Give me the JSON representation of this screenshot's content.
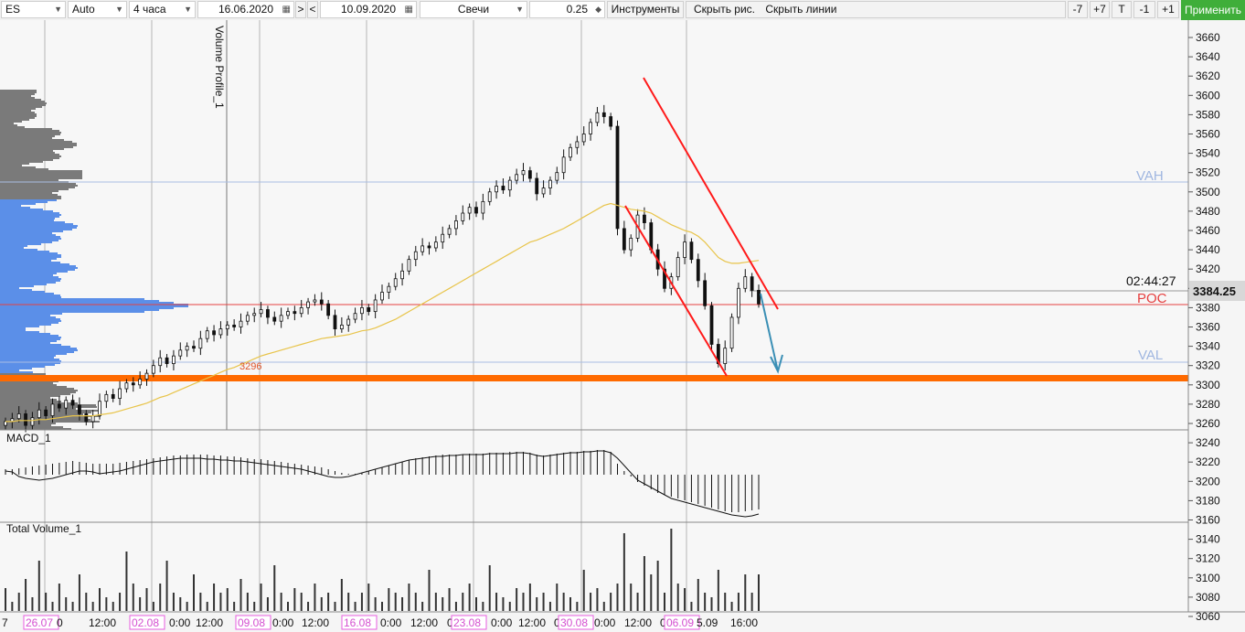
{
  "toolbar": {
    "symbol": "ES",
    "scale_mode": "Auto",
    "timeframe": "4 часа",
    "date_from": "16.06.2020",
    "prev_btn": ">",
    "next_btn": "<",
    "date_to": "10.09.2020",
    "chart_type": "Свечи",
    "tick_size": "0.25",
    "instruments": "Инструменты",
    "hide_drawings": "Скрыть рис.",
    "hide_lines": "Скрыть линии",
    "btn_minus7": "-7",
    "btn_plus7": "+7",
    "btn_t": "T",
    "btn_minus1": "-1",
    "btn_plus1": "+1",
    "apply": "Применить"
  },
  "colors": {
    "up_down_candle": "#111111",
    "profile_value_area": "#5b8fe8",
    "profile_outside": "#7a7a7a",
    "ma_line": "#e8c44a",
    "channel": "#ff1a1a",
    "arrow": "#3a8fb5",
    "support": "#ff6a00",
    "poc_line": "#e64040",
    "va_lines": "#9fb6e0"
  },
  "annotations": {
    "profile_label": "Volume Profile_1",
    "macd_label": "MACD_1",
    "volume_label": "Total Volume_1",
    "vah": "VAH",
    "poc": "POC",
    "val": "VAL",
    "level_label": "3296",
    "timer": "02:44:27",
    "last_price": "3384.25"
  },
  "chart_data": {
    "type": "candlestick",
    "price_axis": [
      "3660",
      "3640",
      "3620",
      "3600",
      "3580",
      "3560",
      "3540",
      "3520",
      "3500",
      "3480",
      "3460",
      "3440",
      "3420",
      "3400",
      "3380",
      "3360",
      "3340",
      "3320",
      "3300",
      "3280",
      "3260",
      "3240",
      "3220",
      "3200",
      "3180",
      "3160",
      "3140",
      "3120",
      "3100",
      "3080",
      "3060"
    ],
    "price_range": [
      3240,
      3660
    ],
    "levels": {
      "vah": 3493,
      "poc": 3369,
      "val": 3314,
      "support": 3296,
      "last": 3384.25
    },
    "time_axis": [
      {
        "label": "7",
        "highlight": false
      },
      {
        "label": "26.07",
        "highlight": true
      },
      {
        "label": "0",
        "highlight": false
      },
      {
        "label": "12:00",
        "highlight": false
      },
      {
        "label": "02.08",
        "highlight": true
      },
      {
        "label": "0:00",
        "highlight": false
      },
      {
        "label": "12:00",
        "highlight": false
      },
      {
        "label": "09.08",
        "highlight": true
      },
      {
        "label": "0:00",
        "highlight": false
      },
      {
        "label": "12:00",
        "highlight": false
      },
      {
        "label": "16.08",
        "highlight": true
      },
      {
        "label": "0:00",
        "highlight": false
      },
      {
        "label": "12:00",
        "highlight": false
      },
      {
        "label": "0",
        "highlight": false
      },
      {
        "label": "23.08",
        "highlight": true
      },
      {
        "label": "0:00",
        "highlight": false
      },
      {
        "label": "12:00",
        "highlight": false
      },
      {
        "label": "0",
        "highlight": false
      },
      {
        "label": "30.08",
        "highlight": true
      },
      {
        "label": "0:00",
        "highlight": false
      },
      {
        "label": "12:00",
        "highlight": false
      },
      {
        "label": "0",
        "highlight": false
      },
      {
        "label": "06.09",
        "highlight": true
      },
      {
        "label": "5.09",
        "highlight": false
      },
      {
        "label": "16:00",
        "highlight": false
      }
    ],
    "closes": [
      3262,
      3265,
      3270,
      3258,
      3266,
      3274,
      3268,
      3280,
      3276,
      3284,
      3279,
      3270,
      3262,
      3268,
      3283,
      3290,
      3286,
      3296,
      3302,
      3300,
      3306,
      3312,
      3320,
      3328,
      3322,
      3330,
      3336,
      3340,
      3338,
      3348,
      3356,
      3352,
      3358,
      3362,
      3360,
      3366,
      3372,
      3374,
      3378,
      3370,
      3366,
      3372,
      3376,
      3374,
      3380,
      3386,
      3388,
      3384,
      3372,
      3358,
      3362,
      3368,
      3374,
      3380,
      3376,
      3388,
      3396,
      3402,
      3410,
      3418,
      3430,
      3438,
      3444,
      3442,
      3448,
      3456,
      3462,
      3470,
      3478,
      3484,
      3478,
      3490,
      3500,
      3506,
      3502,
      3512,
      3518,
      3522,
      3514,
      3498,
      3504,
      3512,
      3520,
      3536,
      3546,
      3552,
      3560,
      3572,
      3582,
      3578,
      3568,
      3462,
      3440,
      3452,
      3476,
      3468,
      3440,
      3420,
      3400,
      3412,
      3432,
      3448,
      3430,
      3408,
      3382,
      3342,
      3322,
      3338,
      3370,
      3400,
      3412,
      3398,
      3384
    ],
    "ma": [
      3262,
      3262,
      3263,
      3263,
      3263,
      3264,
      3264,
      3265,
      3266,
      3267,
      3268,
      3268,
      3268,
      3268,
      3269,
      3270,
      3271,
      3273,
      3275,
      3277,
      3279,
      3281,
      3284,
      3287,
      3289,
      3292,
      3295,
      3298,
      3301,
      3304,
      3307,
      3310,
      3313,
      3316,
      3318,
      3321,
      3324,
      3327,
      3330,
      3332,
      3334,
      3336,
      3338,
      3340,
      3342,
      3344,
      3346,
      3348,
      3349,
      3350,
      3351,
      3352,
      3354,
      3356,
      3357,
      3359,
      3362,
      3365,
      3368,
      3372,
      3376,
      3380,
      3384,
      3388,
      3392,
      3396,
      3400,
      3404,
      3408,
      3412,
      3416,
      3420,
      3424,
      3428,
      3432,
      3436,
      3440,
      3444,
      3448,
      3450,
      3453,
      3456,
      3459,
      3462,
      3466,
      3470,
      3474,
      3478,
      3482,
      3486,
      3488,
      3486,
      3484,
      3482,
      3481,
      3480,
      3478,
      3474,
      3470,
      3466,
      3463,
      3460,
      3458,
      3454,
      3448,
      3440,
      3432,
      3428,
      3426,
      3426,
      3427,
      3428,
      3429
    ],
    "macd_hist": [
      6,
      6,
      7,
      8,
      9,
      10,
      11,
      12,
      13,
      14,
      15,
      14,
      13,
      12,
      12,
      12,
      12,
      13,
      14,
      15,
      16,
      17,
      18,
      19,
      20,
      21,
      21,
      22,
      22,
      22,
      22,
      21,
      21,
      20,
      20,
      19,
      18,
      17,
      17,
      16,
      15,
      14,
      13,
      12,
      11,
      10,
      9,
      8,
      6,
      4,
      2,
      1,
      1,
      2,
      4,
      6,
      8,
      10,
      12,
      14,
      16,
      18,
      19,
      20,
      21,
      22,
      22,
      22,
      22,
      23,
      23,
      23,
      24,
      24,
      24,
      25,
      25,
      25,
      24,
      22,
      21,
      22,
      23,
      24,
      25,
      25,
      26,
      26,
      27,
      27,
      25,
      12,
      4,
      -2,
      -8,
      -12,
      -16,
      -20,
      -22,
      -24,
      -26,
      -28,
      -30,
      -32,
      -34,
      -36,
      -38,
      -40,
      -41,
      -41,
      -40,
      -39,
      -38
    ],
    "macd_line": [
      4,
      3,
      -2,
      -4,
      -5,
      -6,
      -5,
      -4,
      -2,
      0,
      2,
      4,
      4,
      3,
      1,
      2,
      3,
      4,
      6,
      8,
      10,
      12,
      14,
      15,
      16,
      17,
      18,
      18,
      18,
      18,
      17,
      17,
      16,
      16,
      15,
      15,
      14,
      13,
      12,
      11,
      10,
      9,
      8,
      7,
      6,
      4,
      2,
      0,
      -2,
      -3,
      -3,
      -2,
      0,
      2,
      4,
      6,
      8,
      10,
      12,
      14,
      16,
      17,
      18,
      19,
      20,
      20,
      21,
      21,
      22,
      22,
      22,
      22,
      23,
      23,
      23,
      23,
      24,
      24,
      23,
      21,
      20,
      21,
      22,
      23,
      24,
      24,
      25,
      25,
      26,
      26,
      24,
      18,
      10,
      2,
      -6,
      -10,
      -14,
      -18,
      -22,
      -26,
      -28,
      -30,
      -32,
      -34,
      -36,
      -38,
      -40,
      -42,
      -44,
      -45,
      -46,
      -45,
      -43
    ],
    "volumes": [
      0.25,
      0.1,
      0.2,
      0.35,
      0.15,
      0.55,
      0.2,
      0.1,
      0.3,
      0.15,
      0.1,
      0.4,
      0.2,
      0.1,
      0.25,
      0.15,
      0.1,
      0.2,
      0.65,
      0.3,
      0.15,
      0.25,
      0.1,
      0.3,
      0.55,
      0.2,
      0.15,
      0.1,
      0.4,
      0.2,
      0.1,
      0.3,
      0.2,
      0.25,
      0.1,
      0.35,
      0.2,
      0.1,
      0.3,
      0.15,
      0.5,
      0.2,
      0.1,
      0.25,
      0.2,
      0.1,
      0.3,
      0.15,
      0.2,
      0.1,
      0.35,
      0.2,
      0.1,
      0.2,
      0.3,
      0.15,
      0.1,
      0.25,
      0.2,
      0.15,
      0.3,
      0.2,
      0.1,
      0.45,
      0.2,
      0.15,
      0.25,
      0.1,
      0.2,
      0.3,
      0.15,
      0.1,
      0.5,
      0.2,
      0.15,
      0.1,
      0.25,
      0.2,
      0.3,
      0.15,
      0.2,
      0.1,
      0.3,
      0.2,
      0.15,
      0.1,
      0.45,
      0.2,
      0.25,
      0.1,
      0.2,
      0.3,
      0.85,
      0.3,
      0.2,
      0.6,
      0.4,
      0.55,
      0.2,
      0.9,
      0.3,
      0.25,
      0.1,
      0.35,
      0.2,
      0.15,
      0.45,
      0.2,
      0.1,
      0.2,
      0.4,
      0.2,
      0.4
    ]
  }
}
